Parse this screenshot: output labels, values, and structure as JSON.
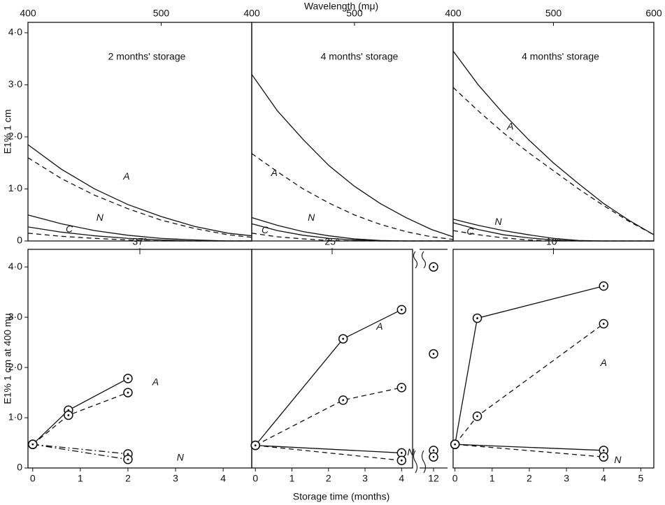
{
  "chart_data": [
    {
      "type": "line",
      "title": "2 months' storage",
      "xlabel": "Wavelength (mμ)",
      "ylabel": "E1% 1 cm",
      "xlim": [
        400,
        568
      ],
      "xticks": [
        400,
        500
      ],
      "ylim": [
        0,
        4.2
      ],
      "yticks": [
        0,
        {
          "value": 1,
          "label": "1·0"
        },
        {
          "value": 2,
          "label": "2·0"
        },
        {
          "value": 3,
          "label": "3·0"
        },
        {
          "value": 4,
          "label": "4·0"
        }
      ],
      "markers": false,
      "series": [
        {
          "style": "solid",
          "color": "#111",
          "x": [
            400,
            425,
            450,
            475,
            500,
            525,
            550,
            568
          ],
          "values": [
            1.85,
            1.38,
            1.0,
            0.7,
            0.47,
            0.28,
            0.15,
            0.1
          ]
        },
        {
          "style": "dashed",
          "color": "#111",
          "x": [
            400,
            425,
            450,
            475,
            500,
            525,
            550,
            568
          ],
          "values": [
            1.6,
            1.2,
            0.88,
            0.62,
            0.4,
            0.24,
            0.12,
            0.07
          ]
        },
        {
          "style": "solid",
          "color": "#111",
          "x": [
            400,
            425,
            450,
            475,
            500,
            525,
            550,
            568
          ],
          "values": [
            0.5,
            0.33,
            0.2,
            0.11,
            0.05,
            0.02,
            0,
            0
          ]
        },
        {
          "style": "solid",
          "color": "#111",
          "x": [
            400,
            425,
            450,
            475,
            500,
            525,
            550,
            568
          ],
          "values": [
            0.27,
            0.17,
            0.1,
            0.05,
            0.02,
            0,
            0,
            0
          ]
        },
        {
          "style": "dashed",
          "color": "#111",
          "x": [
            400,
            425,
            450,
            475,
            500,
            525,
            550,
            568
          ],
          "values": [
            0.15,
            0.09,
            0.05,
            0.02,
            0,
            0,
            0,
            0
          ]
        }
      ],
      "annotations": [
        {
          "text": "A",
          "x": 474,
          "y": 1.23
        },
        {
          "text": "C",
          "x": 431,
          "y": 0.22
        },
        {
          "text": "N",
          "x": 454,
          "y": 0.44
        }
      ]
    },
    {
      "type": "line",
      "title": "4 months' storage",
      "xlim": [
        400,
        596
      ],
      "xticks": [
        400,
        500
      ],
      "ylim": [
        0,
        4.2
      ],
      "markers": false,
      "series": [
        {
          "style": "solid",
          "color": "#111",
          "x": [
            400,
            425,
            450,
            475,
            500,
            525,
            550,
            575,
            596
          ],
          "values": [
            3.2,
            2.5,
            1.95,
            1.45,
            1.05,
            0.72,
            0.45,
            0.22,
            0.08
          ]
        },
        {
          "style": "dashed",
          "color": "#111",
          "x": [
            400,
            425,
            450,
            475,
            500,
            525,
            550,
            575,
            596
          ],
          "values": [
            1.68,
            1.33,
            1.0,
            0.73,
            0.5,
            0.32,
            0.18,
            0.08,
            0.03
          ]
        },
        {
          "style": "solid",
          "color": "#111",
          "x": [
            400,
            425,
            450,
            475,
            500,
            525,
            550,
            575,
            596
          ],
          "values": [
            0.45,
            0.3,
            0.18,
            0.1,
            0.04,
            0.01,
            0,
            0,
            0
          ]
        },
        {
          "style": "solid",
          "color": "#111",
          "x": [
            400,
            425,
            450,
            475,
            500,
            525,
            550,
            575,
            596
          ],
          "values": [
            0.33,
            0.2,
            0.11,
            0.05,
            0.02,
            0,
            0,
            0,
            0
          ]
        },
        {
          "style": "dashed",
          "color": "#111",
          "x": [
            400,
            425,
            450,
            475,
            500,
            525,
            550,
            575,
            596
          ],
          "values": [
            0.15,
            0.08,
            0.04,
            0.01,
            0,
            0,
            0,
            0,
            0
          ]
        }
      ],
      "annotations": [
        {
          "text": "A",
          "x": 422,
          "y": 1.3
        },
        {
          "text": "C",
          "x": 413,
          "y": 0.2
        },
        {
          "text": "N",
          "x": 458,
          "y": 0.44
        }
      ]
    },
    {
      "type": "line",
      "title": "4 months' storage",
      "xlim": [
        400,
        600
      ],
      "xticks": [
        400,
        500,
        600
      ],
      "ylim": [
        0,
        4.2
      ],
      "markers": false,
      "series": [
        {
          "style": "solid",
          "color": "#111",
          "x": [
            400,
            425,
            450,
            475,
            500,
            525,
            550,
            575,
            600
          ],
          "values": [
            3.65,
            3.0,
            2.45,
            1.95,
            1.5,
            1.1,
            0.72,
            0.4,
            0.12
          ]
        },
        {
          "style": "dashed",
          "color": "#111",
          "x": [
            400,
            425,
            450,
            475,
            500,
            525,
            550,
            575,
            600
          ],
          "values": [
            2.95,
            2.5,
            2.08,
            1.7,
            1.35,
            1.0,
            0.68,
            0.38,
            0.12
          ]
        },
        {
          "style": "solid",
          "color": "#111",
          "x": [
            400,
            425,
            450,
            475,
            500,
            525,
            550,
            575,
            600
          ],
          "values": [
            0.42,
            0.3,
            0.2,
            0.12,
            0.05,
            0.01,
            0,
            0,
            0
          ]
        },
        {
          "style": "solid",
          "color": "#111",
          "x": [
            400,
            425,
            450,
            475,
            500,
            525,
            550,
            575,
            600
          ],
          "values": [
            0.35,
            0.22,
            0.12,
            0.06,
            0.02,
            0,
            0,
            0,
            0
          ]
        },
        {
          "style": "dashed",
          "color": "#111",
          "x": [
            400,
            425,
            450,
            475,
            500,
            525,
            550,
            575,
            600
          ],
          "values": [
            0.2,
            0.12,
            0.06,
            0.02,
            0,
            0,
            0,
            0,
            0
          ]
        }
      ],
      "annotations": [
        {
          "text": "A",
          "x": 457,
          "y": 2.19
        },
        {
          "text": "C",
          "x": 417,
          "y": 0.17
        },
        {
          "text": "N",
          "x": 445,
          "y": 0.36
        }
      ]
    },
    {
      "type": "line",
      "title": "37°",
      "xlabel": "Storage time (months)",
      "ylabel": "E1% 1 cm at 400 mμ",
      "xlim": [
        -0.1,
        4.6
      ],
      "xticks": [
        0,
        1,
        2,
        3,
        4
      ],
      "ylim": [
        0,
        4.35
      ],
      "yticks": [
        0,
        {
          "value": 1,
          "label": "1·0"
        },
        {
          "value": 2,
          "label": "2·0"
        },
        {
          "value": 3,
          "label": "3·0"
        },
        {
          "value": 4,
          "label": "4·0"
        }
      ],
      "markers": true,
      "series": [
        {
          "style": "solid",
          "color": "#111",
          "x": [
            0,
            0.75,
            2
          ],
          "values": [
            0.47,
            1.15,
            1.78
          ]
        },
        {
          "style": "dashed",
          "color": "#111",
          "x": [
            0,
            0.75,
            2
          ],
          "values": [
            0.47,
            1.05,
            1.5
          ]
        },
        {
          "style": "dashdot",
          "color": "#111",
          "x": [
            0,
            2
          ],
          "values": [
            0.47,
            0.28
          ]
        },
        {
          "style": "dashdot",
          "color": "#111",
          "x": [
            0,
            2
          ],
          "values": [
            0.47,
            0.17
          ]
        }
      ],
      "annotations": [
        {
          "text": "A",
          "x": 2.58,
          "y": 1.7
        },
        {
          "text": "N",
          "x": 3.1,
          "y": 0.2
        }
      ]
    },
    {
      "type": "line",
      "title": "25°",
      "xlim": [
        -0.1,
        4.3
      ],
      "xticks": [
        0,
        1,
        2,
        3,
        4
      ],
      "ylim": [
        0,
        4.35
      ],
      "markers": true,
      "series": [
        {
          "style": "solid",
          "color": "#111",
          "x": [
            0,
            2.4,
            4
          ],
          "values": [
            0.45,
            2.57,
            3.15
          ]
        },
        {
          "style": "dashed",
          "color": "#111",
          "x": [
            0,
            2.4,
            4
          ],
          "values": [
            0.45,
            1.35,
            1.6
          ]
        },
        {
          "style": "solid",
          "color": "#111",
          "x": [
            0,
            4
          ],
          "values": [
            0.45,
            0.3
          ]
        },
        {
          "style": "dashed",
          "color": "#111",
          "x": [
            0,
            4
          ],
          "values": [
            0.45,
            0.15
          ]
        }
      ],
      "annotations": [
        {
          "text": "A",
          "x": 3.4,
          "y": 2.8
        },
        {
          "text": "N",
          "x": 4.25,
          "y": 0.3
        }
      ]
    },
    {
      "type": "line",
      "xlim": [
        11.5,
        12.5
      ],
      "xticks": [
        12
      ],
      "ylim": [
        0,
        4.35
      ],
      "markers": true,
      "series": [
        {
          "style": "solid",
          "color": "#111",
          "x": [
            12
          ],
          "values": [
            4.0
          ]
        },
        {
          "style": "dashed",
          "color": "#111",
          "x": [
            12
          ],
          "values": [
            2.27
          ]
        },
        {
          "style": "solid",
          "color": "#111",
          "x": [
            12
          ],
          "values": [
            0.35
          ]
        },
        {
          "style": "dashed",
          "color": "#111",
          "x": [
            12
          ],
          "values": [
            0.22
          ]
        }
      ]
    },
    {
      "type": "line",
      "title": "10°",
      "xlim": [
        -0.05,
        5.35
      ],
      "xticks": [
        0,
        1,
        2,
        3,
        4,
        5
      ],
      "ylim": [
        0,
        4.35
      ],
      "markers": true,
      "series": [
        {
          "style": "solid",
          "color": "#111",
          "x": [
            0,
            0.6,
            4
          ],
          "values": [
            0.47,
            2.98,
            3.62
          ]
        },
        {
          "style": "dashed",
          "color": "#111",
          "x": [
            0,
            0.6,
            4
          ],
          "values": [
            0.47,
            1.03,
            2.87
          ]
        },
        {
          "style": "solid",
          "color": "#111",
          "x": [
            0,
            4
          ],
          "values": [
            0.47,
            0.35
          ]
        },
        {
          "style": "dashed",
          "color": "#111",
          "x": [
            0,
            4
          ],
          "values": [
            0.47,
            0.22
          ]
        }
      ],
      "annotations": [
        {
          "text": "A",
          "x": 4.0,
          "y": 2.08
        },
        {
          "text": "N",
          "x": 4.38,
          "y": 0.15
        }
      ]
    }
  ]
}
